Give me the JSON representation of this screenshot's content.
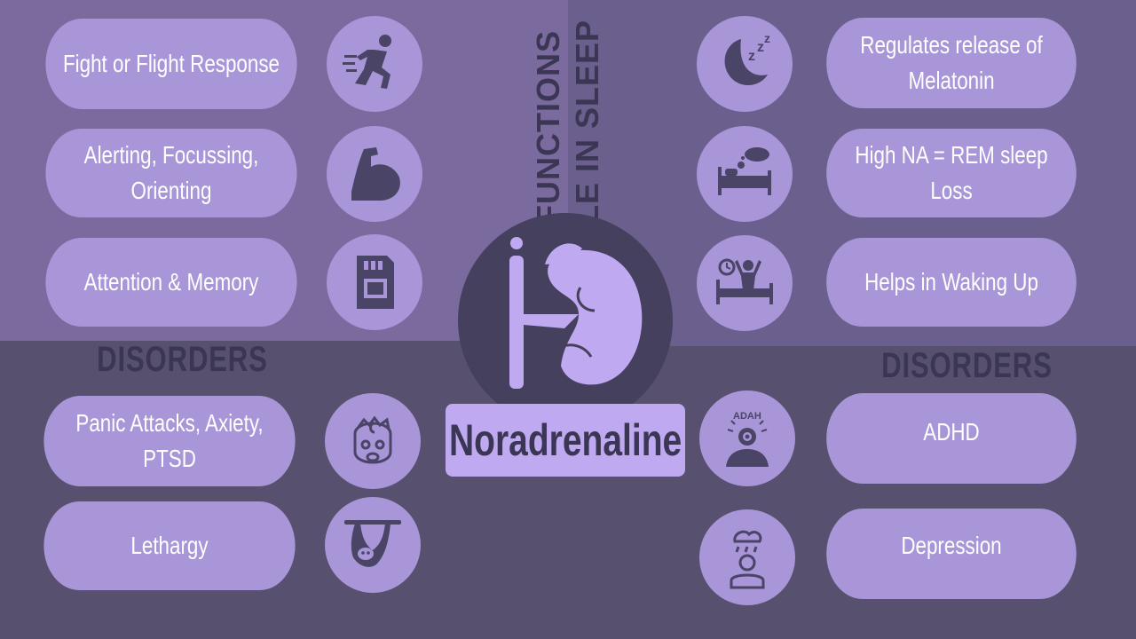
{
  "center": {
    "title": "Noradrenaline",
    "icon": "adrenal-gland-kidney-icon"
  },
  "headings": {
    "functions": "FUNCTIONS",
    "role_in_sleep": "ROLE IN SLEEP",
    "disorders_left": "DISORDERS",
    "disorders_right": "DISORDERS"
  },
  "functions": [
    {
      "label": "Fight or Flight Response",
      "icon": "running-person-icon"
    },
    {
      "label": "Alerting, Focussing, Orienting",
      "icon": "flexed-arm-icon"
    },
    {
      "label": "Attention & Memory",
      "icon": "memory-card-icon"
    }
  ],
  "sleep_roles": [
    {
      "line1": "Regulates release of",
      "line2": "Melatonin",
      "icon": "moon-zzz-icon"
    },
    {
      "label": "High NA = REM sleep Loss",
      "icon": "bed-dream-icon"
    },
    {
      "label": "Helps in Waking Up",
      "icon": "waking-up-icon"
    }
  ],
  "disorders_left": [
    {
      "label": "Panic Attacks, Axiety, PTSD",
      "icon": "anxious-face-icon"
    },
    {
      "label": "Lethargy",
      "icon": "sloth-icon"
    }
  ],
  "disorders_right": [
    {
      "label": "ADHD",
      "icon": "adhd-head-icon",
      "icon_text": "ADAH"
    },
    {
      "label": "Depression",
      "icon": "rain-cloud-person-icon"
    }
  ],
  "colors": {
    "background_dark": "#57516f",
    "quadrant_top_left": "#7a6a9e",
    "quadrant_top_right": "#6b5f8d",
    "pill": "#a896d8",
    "icon_dark": "#4a4466",
    "center_accent": "#bfaaf2",
    "heading_text": "#3b3654"
  }
}
